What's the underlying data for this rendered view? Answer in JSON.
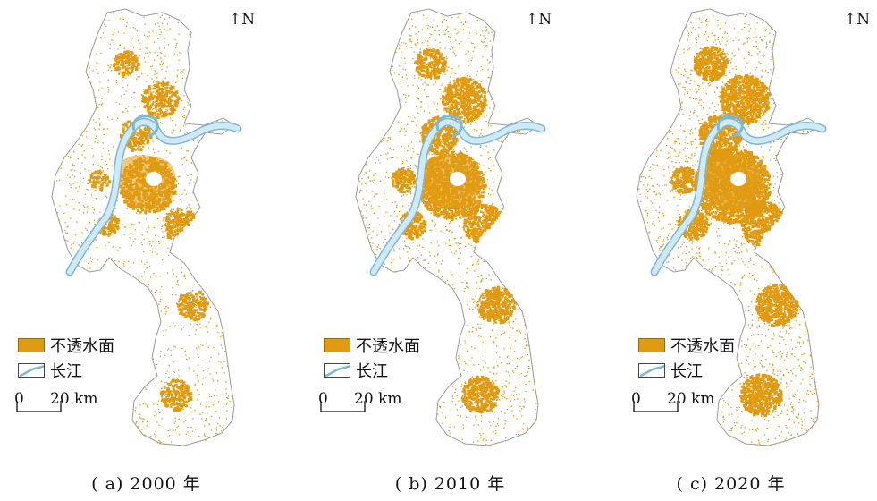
{
  "north_label": "N",
  "legend": {
    "impervious_label": "不透水面",
    "river_label": "长江"
  },
  "scale": {
    "zero": "0",
    "distance": "20 km"
  },
  "panels": [
    {
      "caption": "( a) 2000 年",
      "year": 2000,
      "density": 0.32
    },
    {
      "caption": "( b) 2010 年",
      "year": 2010,
      "density": 0.52
    },
    {
      "caption": "( c) 2020 年",
      "year": 2020,
      "density": 0.68
    }
  ],
  "colors": {
    "impervious": "#e09b12",
    "river_fill": "#cfe9f5",
    "river_edge": "#7fb8d6",
    "boundary": "#9a9a9a"
  }
}
